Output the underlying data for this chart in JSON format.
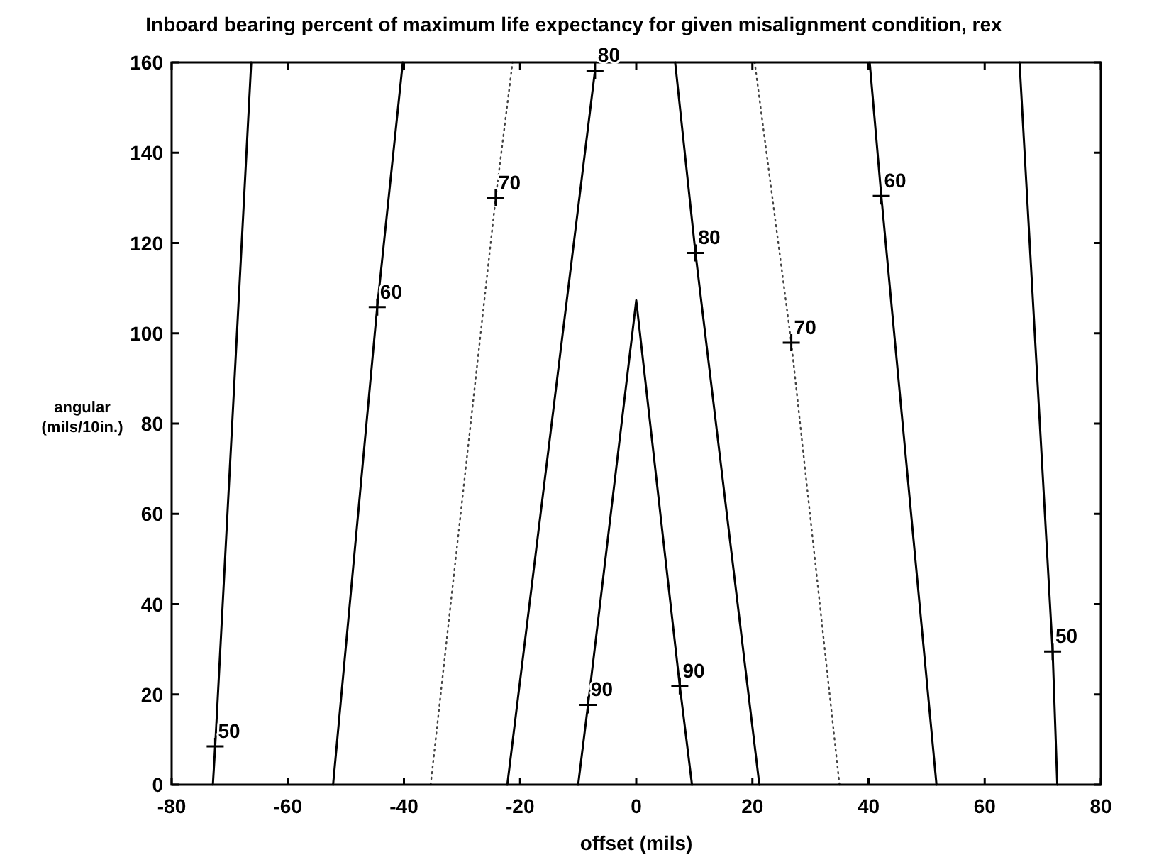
{
  "chart_data": {
    "type": "line",
    "title": "Inboard bearing percent of maximum life expectancy for given misalignment condition, rex",
    "xlabel": "offset (mils)",
    "ylabel": "angular (mils/10in.)",
    "xlim": [
      -80,
      80
    ],
    "xticks": [
      -80,
      -60,
      -40,
      -20,
      0,
      20,
      40,
      60,
      80
    ],
    "ylim": [
      0,
      160
    ],
    "yticks": [
      0,
      20,
      40,
      60,
      80,
      100,
      120,
      140,
      160
    ],
    "grid": false,
    "series": [
      {
        "color": "#000000",
        "line_style": "solid",
        "x": [
          -72.9,
          -72.5,
          -66.3
        ],
        "values": [
          0,
          8.5,
          160
        ]
      },
      {
        "color": "#000000",
        "line_style": "solid",
        "x": [
          -52.2,
          -44.6,
          -40.2
        ],
        "values": [
          0,
          105.8,
          160
        ]
      },
      {
        "color": "#444444",
        "line_style": "dotted",
        "x": [
          -35.4,
          -24.2,
          -21.3
        ],
        "values": [
          0,
          130,
          160
        ]
      },
      {
        "color": "#000000",
        "line_style": "solid",
        "x": [
          -22.2,
          -7.1
        ],
        "values": [
          0,
          158.2
        ]
      },
      {
        "color": "#000000",
        "line_style": "solid",
        "x": [
          -10,
          -8.3,
          0,
          7.5,
          9.6
        ],
        "values": [
          0,
          17.7,
          107.3,
          21.9,
          0
        ]
      },
      {
        "color": "#000000",
        "line_style": "solid",
        "x": [
          21.2,
          10.2,
          6.7
        ],
        "values": [
          0,
          117.8,
          160
        ]
      },
      {
        "color": "#444444",
        "line_style": "dotted",
        "x": [
          35,
          26.7,
          20.4
        ],
        "values": [
          0,
          97.9,
          160
        ]
      },
      {
        "color": "#000000",
        "line_style": "solid",
        "x": [
          51.7,
          42.2,
          40.2
        ],
        "values": [
          0,
          130.4,
          160
        ]
      },
      {
        "color": "#000000",
        "line_style": "solid",
        "x": [
          72.5,
          71.7,
          66
        ],
        "values": [
          0,
          29.5,
          160
        ]
      }
    ],
    "annotations": [
      {
        "text": "50",
        "x": -72.5,
        "y": 8.5
      },
      {
        "text": "60",
        "x": -44.6,
        "y": 105.8
      },
      {
        "text": "70",
        "x": -24.2,
        "y": 130
      },
      {
        "text": "80",
        "x": -7.1,
        "y": 158.2
      },
      {
        "text": "90",
        "x": -8.3,
        "y": 17.7
      },
      {
        "text": "90",
        "x": 7.5,
        "y": 21.9
      },
      {
        "text": "80",
        "x": 10.2,
        "y": 117.8
      },
      {
        "text": "70",
        "x": 26.7,
        "y": 97.9
      },
      {
        "text": "60",
        "x": 42.2,
        "y": 130.4
      },
      {
        "text": "50",
        "x": 71.7,
        "y": 29.5
      }
    ]
  }
}
